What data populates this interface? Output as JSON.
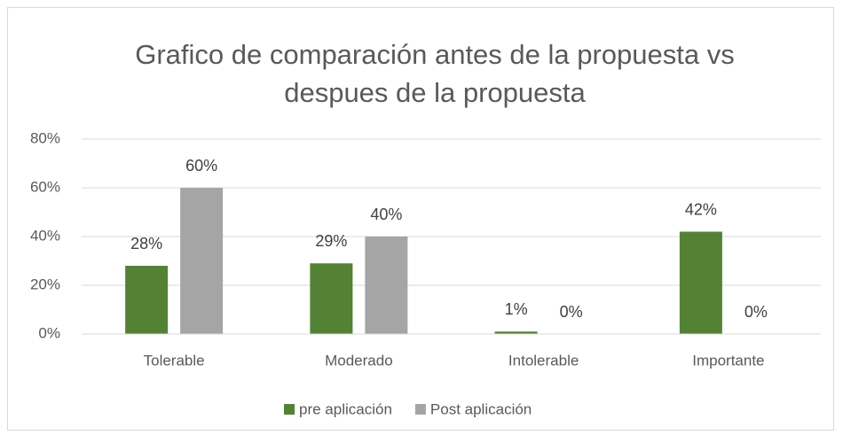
{
  "chart_data": {
    "type": "bar",
    "title": "Grafico de comparación antes de la propuesta vs despues de la propuesta",
    "categories": [
      "Tolerable",
      "Moderado",
      "Intolerable",
      "Importante"
    ],
    "series": [
      {
        "name": "pre aplicación",
        "color": "#548235",
        "values": [
          28,
          29,
          1,
          42
        ],
        "value_labels": [
          "28%",
          "29%",
          "1%",
          "42%"
        ]
      },
      {
        "name": "Post aplicación",
        "color": "#a5a5a5",
        "values": [
          60,
          40,
          0,
          0
        ],
        "value_labels": [
          "60%",
          "40%",
          "0%",
          "0%"
        ]
      }
    ],
    "ylim": [
      0,
      80
    ],
    "yticks": [
      {
        "value": 0,
        "label": "0%"
      },
      {
        "value": 20,
        "label": "20%"
      },
      {
        "value": 40,
        "label": "40%"
      },
      {
        "value": 60,
        "label": "60%"
      },
      {
        "value": 80,
        "label": "80%"
      }
    ],
    "grid": true,
    "legend": "bottom"
  }
}
